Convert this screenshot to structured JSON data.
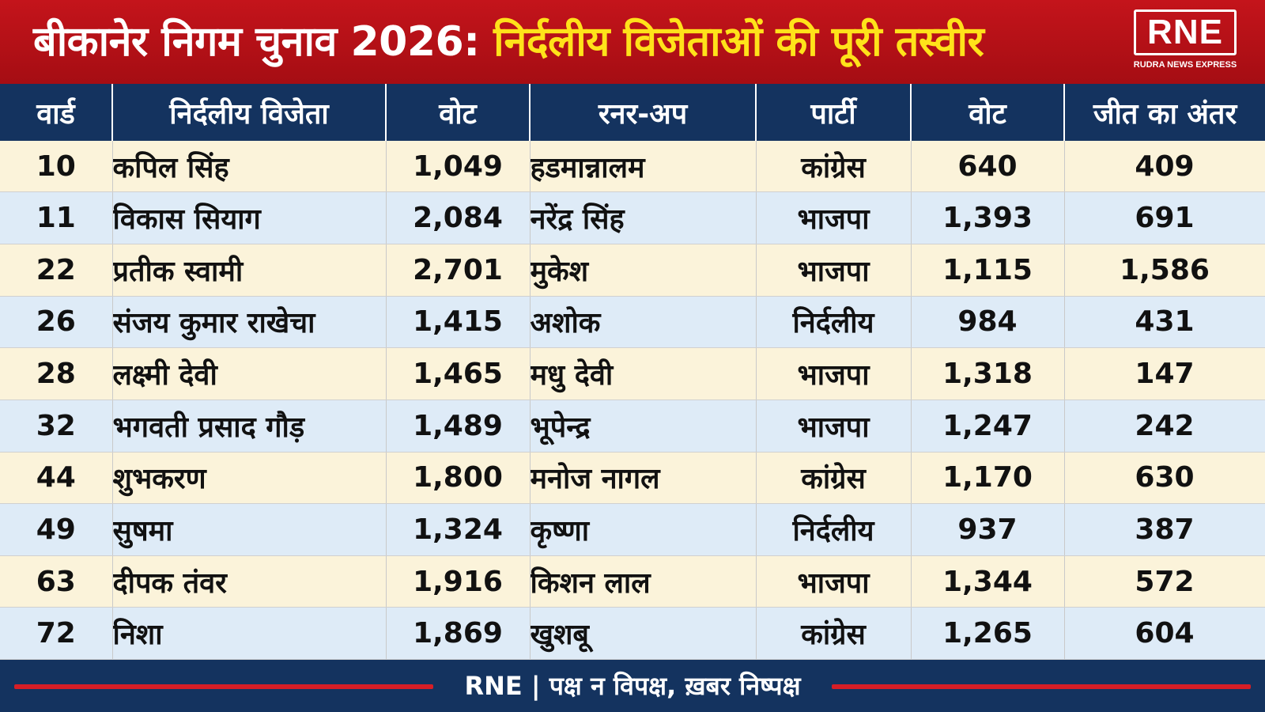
{
  "header": {
    "title_part1": "बीकानेर निगम चुनाव 2026: ",
    "title_part2": "निर्दलीय विजेताओं की पूरी तस्वीर",
    "logo_text": "RNE",
    "logo_tagline": "RUDRA NEWS EXPRESS",
    "colors": {
      "banner": "#b3111a",
      "title_highlight": "#ffe21a"
    }
  },
  "table": {
    "columns": [
      "वार्ड",
      "निर्दलीय विजेता",
      "वोट",
      "रनर-अप",
      "पार्टी",
      "वोट",
      "जीत का अंतर"
    ],
    "colors": {
      "header_bg": "#14335f",
      "row_odd": "#fbf3da",
      "row_even": "#deebf7"
    },
    "rows": [
      {
        "ward": "10",
        "winner": "कपिल सिंह",
        "winner_votes": "1,049",
        "runner_up": "हडमान्नालम",
        "party": "कांग्रेस",
        "runner_votes": "640",
        "margin": "409"
      },
      {
        "ward": "11",
        "winner": "विकास सियाग",
        "winner_votes": "2,084",
        "runner_up": "नरेंद्र सिंह",
        "party": "भाजपा",
        "runner_votes": "1,393",
        "margin": "691"
      },
      {
        "ward": "22",
        "winner": "प्रतीक स्वामी",
        "winner_votes": "2,701",
        "runner_up": "मुकेश",
        "party": "भाजपा",
        "runner_votes": "1,115",
        "margin": "1,586"
      },
      {
        "ward": "26",
        "winner": "संजय कुमार राखेचा",
        "winner_votes": "1,415",
        "runner_up": "अशोक",
        "party": "निर्दलीय",
        "runner_votes": "984",
        "margin": "431"
      },
      {
        "ward": "28",
        "winner": "लक्ष्मी देवी",
        "winner_votes": "1,465",
        "runner_up": "मधु देवी",
        "party": "भाजपा",
        "runner_votes": "1,318",
        "margin": "147"
      },
      {
        "ward": "32",
        "winner": "भगवती प्रसाद गौड़",
        "winner_votes": "1,489",
        "runner_up": "भूपेन्द्र",
        "party": "भाजपा",
        "runner_votes": "1,247",
        "margin": "242"
      },
      {
        "ward": "44",
        "winner": "शुभकरण",
        "winner_votes": "1,800",
        "runner_up": "मनोज नागल",
        "party": "कांग्रेस",
        "runner_votes": "1,170",
        "margin": "630"
      },
      {
        "ward": "49",
        "winner": "सुषमा",
        "winner_votes": "1,324",
        "runner_up": "कृष्णा",
        "party": "निर्दलीय",
        "runner_votes": "937",
        "margin": "387"
      },
      {
        "ward": "63",
        "winner": "दीपक तंवर",
        "winner_votes": "1,916",
        "runner_up": "किशन लाल",
        "party": "भाजपा",
        "runner_votes": "1,344",
        "margin": "572"
      },
      {
        "ward": "72",
        "winner": "निशा",
        "winner_votes": "1,869",
        "runner_up": "खुशबू",
        "party": "कांग्रेस",
        "runner_votes": "1,265",
        "margin": "604"
      }
    ]
  },
  "footer": {
    "tagline": "RNE | पक्ष न विपक्ष, ख़बर निष्पक्ष",
    "colors": {
      "bg": "#14335f",
      "accent_line": "#d61e26"
    }
  }
}
